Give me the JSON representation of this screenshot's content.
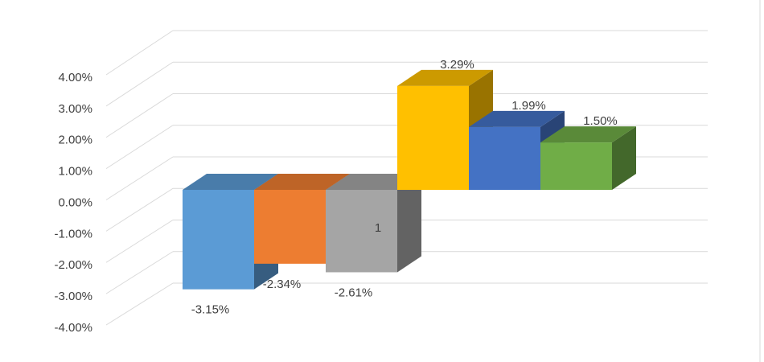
{
  "chart_data": {
    "type": "bar3d",
    "categories": [
      null,
      null,
      null,
      null,
      null,
      null
    ],
    "values": [
      -3.15,
      -2.34,
      -2.61,
      3.29,
      1.99,
      1.5
    ],
    "value_labels": [
      "-3.15%",
      "-2.34%",
      "-2.61%",
      "3.29%",
      "1.99%",
      "1.50%"
    ],
    "colors": [
      "#5b9bd5",
      "#ed7d31",
      "#a5a5a5",
      "#ffc000",
      "#4472c4",
      "#70ad47"
    ],
    "annotation": "1",
    "ylim": [
      -4,
      4
    ],
    "yticks": [
      {
        "value": -4,
        "label": "-4.00%"
      },
      {
        "value": -3,
        "label": "-3.00%"
      },
      {
        "value": -2,
        "label": "-2.00%"
      },
      {
        "value": -1,
        "label": "-1.00%"
      },
      {
        "value": 0,
        "label": "0.00%"
      },
      {
        "value": 1,
        "label": "1.00%"
      },
      {
        "value": 2,
        "label": "2.00%"
      },
      {
        "value": 3,
        "label": "3.00%"
      },
      {
        "value": 4,
        "label": "4.00%"
      }
    ],
    "grid": true
  }
}
